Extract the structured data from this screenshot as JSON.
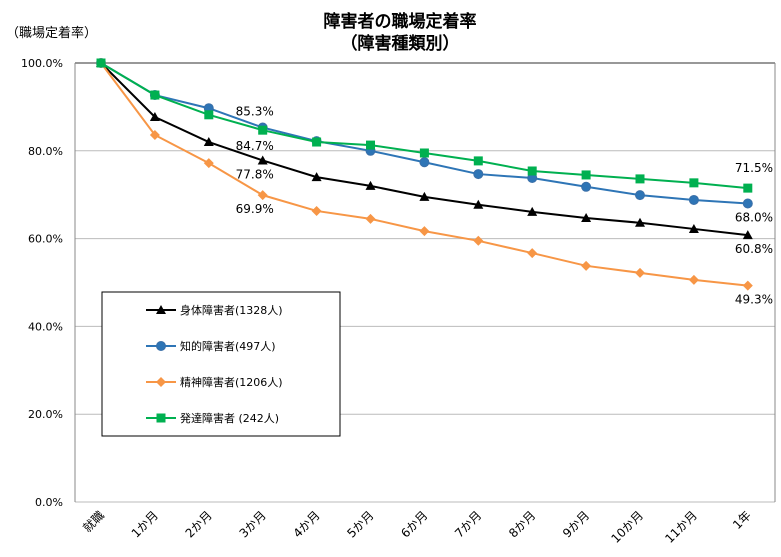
{
  "chart_data": {
    "type": "line",
    "title": [
      "障害者の職場定着率",
      "（障害種類別）"
    ],
    "ylabel": "（職場定着率）",
    "xlabel": "",
    "ylim": [
      0,
      100
    ],
    "yticks": [
      "0.0%",
      "20.0%",
      "40.0%",
      "60.0%",
      "80.0%",
      "100.0%"
    ],
    "ytick_values": [
      0,
      20,
      40,
      60,
      80,
      100
    ],
    "grid": true,
    "legend_position": "lower-left",
    "categories": [
      "就職",
      "1か月",
      "2か月",
      "3か月",
      "4か月",
      "5か月",
      "6か月",
      "7か月",
      "8か月",
      "9か月",
      "10か月",
      "11か月",
      "1年"
    ],
    "series": [
      {
        "name": "身体障害者(1328人)",
        "color": "#000000",
        "marker": "triangle",
        "values": [
          100,
          87.7,
          82.0,
          77.8,
          74.0,
          72.0,
          69.5,
          67.7,
          66.1,
          64.7,
          63.6,
          62.2,
          60.8
        ]
      },
      {
        "name": "知的障害者(497人)",
        "color": "#2e75b6",
        "marker": "circle",
        "values": [
          100,
          92.7,
          89.7,
          85.3,
          82.2,
          80.0,
          77.4,
          74.7,
          73.8,
          71.8,
          69.9,
          68.8,
          68.0
        ]
      },
      {
        "name": "精神障害者(1206人)",
        "color": "#f79646",
        "marker": "diamond",
        "values": [
          100,
          83.6,
          77.2,
          69.9,
          66.3,
          64.5,
          61.7,
          59.5,
          56.7,
          53.8,
          52.2,
          50.6,
          49.3
        ]
      },
      {
        "name": "発達障害者 (242人)",
        "color": "#00b050",
        "marker": "square",
        "values": [
          100,
          92.7,
          88.2,
          84.7,
          82.0,
          81.3,
          79.5,
          77.7,
          75.4,
          74.5,
          73.6,
          72.7,
          71.5
        ]
      }
    ],
    "annotations": [
      {
        "text": "85.3%",
        "series": 1,
        "index": 3
      },
      {
        "text": "84.7%",
        "series": 3,
        "index": 3
      },
      {
        "text": "77.8%",
        "series": 0,
        "index": 3
      },
      {
        "text": "69.9%",
        "series": 2,
        "index": 3
      },
      {
        "text": "71.5%",
        "series": 3,
        "index": 12
      },
      {
        "text": "68.0%",
        "series": 1,
        "index": 12
      },
      {
        "text": "60.8%",
        "series": 0,
        "index": 12
      },
      {
        "text": "49.3%",
        "series": 2,
        "index": 12
      }
    ]
  }
}
